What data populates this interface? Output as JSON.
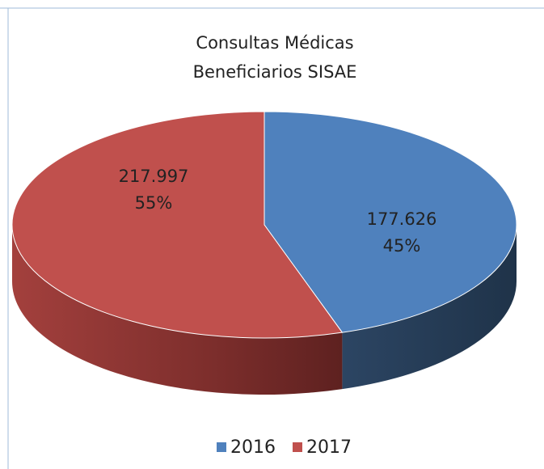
{
  "chart_data": {
    "type": "pie3d",
    "title": [
      "Consultas Médicas",
      "Beneficiarios SISAE"
    ],
    "categories": [
      "2016",
      "2017"
    ],
    "values": [
      177626,
      217997
    ],
    "value_labels": [
      "177.626",
      "217.997"
    ],
    "percentages": [
      45,
      55
    ],
    "percentage_labels": [
      "45%",
      "55%"
    ],
    "colors": [
      "#4f81bd",
      "#c0504d"
    ],
    "legend": "bottom"
  }
}
